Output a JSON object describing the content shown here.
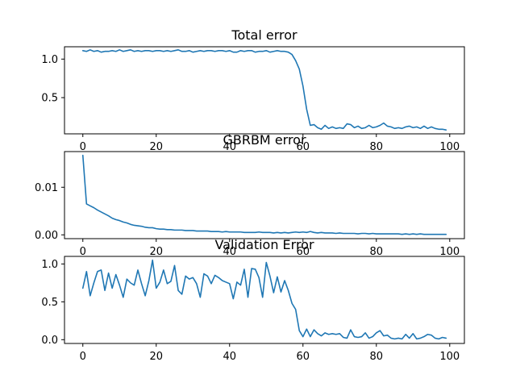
{
  "chart_data": [
    {
      "type": "line",
      "title": "Total error",
      "xlabel": "",
      "ylabel": "",
      "xlim": [
        -5,
        104
      ],
      "ylim": [
        0.03,
        1.16
      ],
      "grid": false,
      "color": "#1f77b4",
      "x_ticks": [
        0,
        20,
        40,
        60,
        80,
        100
      ],
      "x_tick_labels": [
        "0",
        "20",
        "40",
        "60",
        "80",
        "100"
      ],
      "y_ticks": [
        0.5,
        1.0
      ],
      "y_tick_labels": [
        "0.5",
        "1.0"
      ],
      "x": [
        0,
        1,
        2,
        3,
        4,
        5,
        6,
        7,
        8,
        9,
        10,
        11,
        12,
        13,
        14,
        15,
        16,
        17,
        18,
        19,
        20,
        21,
        22,
        23,
        24,
        25,
        26,
        27,
        28,
        29,
        30,
        31,
        32,
        33,
        34,
        35,
        36,
        37,
        38,
        39,
        40,
        41,
        42,
        43,
        44,
        45,
        46,
        47,
        48,
        49,
        50,
        51,
        52,
        53,
        54,
        55,
        56,
        57,
        58,
        59,
        60,
        61,
        62,
        63,
        64,
        65,
        66,
        67,
        68,
        69,
        70,
        71,
        72,
        73,
        74,
        75,
        76,
        77,
        78,
        79,
        80,
        81,
        82,
        83,
        84,
        85,
        86,
        87,
        88,
        89,
        90,
        91,
        92,
        93,
        94,
        95,
        96,
        97,
        98,
        99
      ],
      "y": [
        1.11,
        1.1,
        1.12,
        1.1,
        1.11,
        1.09,
        1.1,
        1.1,
        1.11,
        1.1,
        1.12,
        1.1,
        1.11,
        1.12,
        1.1,
        1.11,
        1.1,
        1.11,
        1.11,
        1.1,
        1.11,
        1.11,
        1.1,
        1.11,
        1.1,
        1.11,
        1.12,
        1.1,
        1.1,
        1.11,
        1.09,
        1.1,
        1.11,
        1.1,
        1.11,
        1.11,
        1.1,
        1.11,
        1.11,
        1.1,
        1.11,
        1.09,
        1.09,
        1.11,
        1.1,
        1.11,
        1.11,
        1.09,
        1.1,
        1.1,
        1.11,
        1.09,
        1.1,
        1.11,
        1.1,
        1.1,
        1.09,
        1.06,
        0.98,
        0.87,
        0.65,
        0.35,
        0.14,
        0.15,
        0.11,
        0.09,
        0.14,
        0.1,
        0.12,
        0.1,
        0.11,
        0.1,
        0.16,
        0.15,
        0.11,
        0.13,
        0.1,
        0.11,
        0.14,
        0.11,
        0.12,
        0.14,
        0.17,
        0.13,
        0.12,
        0.1,
        0.11,
        0.1,
        0.12,
        0.13,
        0.11,
        0.12,
        0.1,
        0.13,
        0.1,
        0.12,
        0.1,
        0.09,
        0.09,
        0.08
      ]
    },
    {
      "type": "line",
      "title": "GBRBM error",
      "xlabel": "",
      "ylabel": "",
      "xlim": [
        -5,
        104
      ],
      "ylim": [
        -0.0008,
        0.0175
      ],
      "grid": false,
      "color": "#1f77b4",
      "x_ticks": [
        0,
        20,
        40,
        60,
        80,
        100
      ],
      "x_tick_labels": [
        "0",
        "20",
        "40",
        "60",
        "80",
        "100"
      ],
      "y_ticks": [
        0.0,
        0.01
      ],
      "y_tick_labels": [
        "0.00",
        "0.01"
      ],
      "x": [
        0,
        1,
        2,
        3,
        4,
        5,
        6,
        7,
        8,
        9,
        10,
        11,
        12,
        13,
        14,
        15,
        16,
        17,
        18,
        19,
        20,
        21,
        22,
        23,
        24,
        25,
        26,
        27,
        28,
        29,
        30,
        31,
        32,
        33,
        34,
        35,
        36,
        37,
        38,
        39,
        40,
        41,
        42,
        43,
        44,
        45,
        46,
        47,
        48,
        49,
        50,
        51,
        52,
        53,
        54,
        55,
        56,
        57,
        58,
        59,
        60,
        61,
        62,
        63,
        64,
        65,
        66,
        67,
        68,
        69,
        70,
        71,
        72,
        73,
        74,
        75,
        76,
        77,
        78,
        79,
        80,
        81,
        82,
        83,
        84,
        85,
        86,
        87,
        88,
        89,
        90,
        91,
        92,
        93,
        94,
        95,
        96,
        97,
        98,
        99
      ],
      "y": [
        0.0167,
        0.0065,
        0.0061,
        0.0057,
        0.0052,
        0.0048,
        0.0044,
        0.004,
        0.0035,
        0.0032,
        0.003,
        0.0027,
        0.0025,
        0.0022,
        0.002,
        0.0019,
        0.0018,
        0.0016,
        0.0015,
        0.0015,
        0.0013,
        0.0012,
        0.0012,
        0.0011,
        0.0011,
        0.001,
        0.001,
        0.001,
        0.0009,
        0.0009,
        0.0009,
        0.0008,
        0.0008,
        0.0008,
        0.0008,
        0.0007,
        0.0007,
        0.0007,
        0.0006,
        0.0007,
        0.0006,
        0.0006,
        0.0006,
        0.0006,
        0.0005,
        0.0005,
        0.0005,
        0.0005,
        0.0006,
        0.0005,
        0.0005,
        0.0005,
        0.0004,
        0.0005,
        0.0004,
        0.0005,
        0.0004,
        0.0005,
        0.0006,
        0.0005,
        0.0006,
        0.0005,
        0.0007,
        0.0005,
        0.0004,
        0.0005,
        0.0004,
        0.0004,
        0.0004,
        0.0003,
        0.0004,
        0.0003,
        0.0003,
        0.0003,
        0.0003,
        0.0002,
        0.0003,
        0.0003,
        0.0002,
        0.0003,
        0.0002,
        0.0002,
        0.0002,
        0.0002,
        0.0002,
        0.0002,
        0.0002,
        0.0001,
        0.0002,
        0.0001,
        0.0002,
        0.0001,
        0.0002,
        0.0001,
        0.0001,
        0.0001,
        0.0001,
        0.0001,
        0.0001,
        0.0001
      ]
    },
    {
      "type": "line",
      "title": "Validation Error",
      "xlabel": "",
      "ylabel": "",
      "xlim": [
        -5,
        104
      ],
      "ylim": [
        -0.05,
        1.1
      ],
      "grid": false,
      "color": "#1f77b4",
      "x_ticks": [
        0,
        20,
        40,
        60,
        80,
        100
      ],
      "x_tick_labels": [
        "0",
        "20",
        "40",
        "60",
        "80",
        "100"
      ],
      "y_ticks": [
        0.0,
        0.5,
        1.0
      ],
      "y_tick_labels": [
        "0.0",
        "0.5",
        "1.0"
      ],
      "x": [
        0,
        1,
        2,
        3,
        4,
        5,
        6,
        7,
        8,
        9,
        10,
        11,
        12,
        13,
        14,
        15,
        16,
        17,
        18,
        19,
        20,
        21,
        22,
        23,
        24,
        25,
        26,
        27,
        28,
        29,
        30,
        31,
        32,
        33,
        34,
        35,
        36,
        37,
        38,
        39,
        40,
        41,
        42,
        43,
        44,
        45,
        46,
        47,
        48,
        49,
        50,
        51,
        52,
        53,
        54,
        55,
        56,
        57,
        58,
        59,
        60,
        61,
        62,
        63,
        64,
        65,
        66,
        67,
        68,
        69,
        70,
        71,
        72,
        73,
        74,
        75,
        76,
        77,
        78,
        79,
        80,
        81,
        82,
        83,
        84,
        85,
        86,
        87,
        88,
        89,
        90,
        91,
        92,
        93,
        94,
        95,
        96,
        97,
        98,
        99
      ],
      "y": [
        0.68,
        0.9,
        0.58,
        0.75,
        0.9,
        0.92,
        0.65,
        0.88,
        0.68,
        0.86,
        0.72,
        0.56,
        0.8,
        0.75,
        0.72,
        0.92,
        0.74,
        0.58,
        0.78,
        1.05,
        0.68,
        0.76,
        0.92,
        0.74,
        0.77,
        0.98,
        0.65,
        0.6,
        0.84,
        0.8,
        0.82,
        0.74,
        0.56,
        0.87,
        0.84,
        0.74,
        0.85,
        0.82,
        0.78,
        0.76,
        0.74,
        0.54,
        0.76,
        0.72,
        0.93,
        0.56,
        0.94,
        0.93,
        0.82,
        0.56,
        1.02,
        0.84,
        0.62,
        0.83,
        0.63,
        0.78,
        0.65,
        0.48,
        0.4,
        0.12,
        0.04,
        0.14,
        0.04,
        0.13,
        0.08,
        0.05,
        0.09,
        0.07,
        0.08,
        0.07,
        0.08,
        0.03,
        0.02,
        0.13,
        0.04,
        0.03,
        0.04,
        0.09,
        0.02,
        0.04,
        0.09,
        0.12,
        0.05,
        0.06,
        0.02,
        0.01,
        0.02,
        0.01,
        0.07,
        0.02,
        0.08,
        0.01,
        0.02,
        0.04,
        0.07,
        0.06,
        0.02,
        0.01,
        0.03,
        0.02
      ]
    }
  ]
}
